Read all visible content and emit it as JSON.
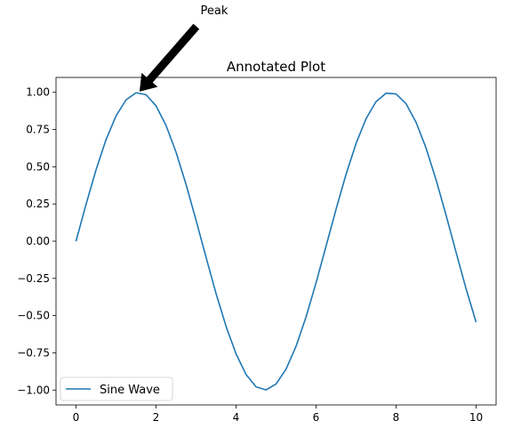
{
  "chart_data": {
    "type": "line",
    "title": "Annotated Plot",
    "xlabel": "",
    "ylabel": "",
    "xlim": [
      -0.5,
      10.5
    ],
    "ylim": [
      -1.1,
      1.1
    ],
    "x_ticks": [
      0,
      2,
      4,
      6,
      8,
      10
    ],
    "x_tick_labels": [
      "0",
      "2",
      "4",
      "6",
      "8",
      "10"
    ],
    "y_ticks": [
      -1.0,
      -0.75,
      -0.5,
      -0.25,
      0.0,
      0.25,
      0.5,
      0.75,
      1.0
    ],
    "y_tick_labels": [
      "−1.00",
      "−0.75",
      "−0.50",
      "−0.25",
      "0.00",
      "0.25",
      "0.50",
      "0.75",
      "1.00"
    ],
    "grid": false,
    "legend": {
      "placement": "lower-left"
    },
    "series": [
      {
        "name": "Sine Wave",
        "color": "#1f77b4",
        "x": [
          0.0,
          0.25,
          0.5,
          0.75,
          1.0,
          1.25,
          1.5,
          1.75,
          2.0,
          2.25,
          2.5,
          2.75,
          3.0,
          3.25,
          3.5,
          3.75,
          4.0,
          4.25,
          4.5,
          4.75,
          5.0,
          5.25,
          5.5,
          5.75,
          6.0,
          6.25,
          6.5,
          6.75,
          7.0,
          7.25,
          7.5,
          7.75,
          8.0,
          8.25,
          8.5,
          8.75,
          9.0,
          9.25,
          9.5,
          9.75,
          10.0
        ],
        "y": [
          0.0,
          0.247,
          0.479,
          0.682,
          0.841,
          0.949,
          0.997,
          0.984,
          0.909,
          0.778,
          0.598,
          0.382,
          0.141,
          -0.108,
          -0.351,
          -0.572,
          -0.757,
          -0.895,
          -0.978,
          -0.999,
          -0.959,
          -0.859,
          -0.706,
          -0.508,
          -0.279,
          -0.033,
          0.215,
          0.45,
          0.657,
          0.823,
          0.938,
          0.994,
          0.989,
          0.923,
          0.798,
          0.625,
          0.412,
          0.174,
          -0.075,
          -0.32,
          -0.544
        ]
      }
    ],
    "annotations": [
      {
        "text": "Peak",
        "xy": [
          1.5708,
          1.0
        ],
        "xytext": [
          3.0,
          1.5
        ],
        "arrow_color": "#000000"
      }
    ]
  }
}
